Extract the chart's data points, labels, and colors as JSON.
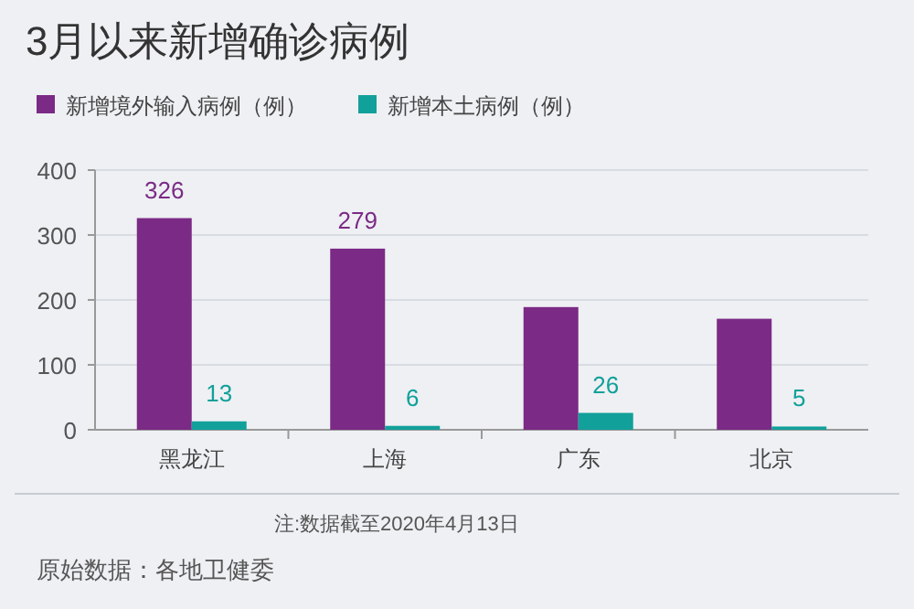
{
  "chart_data": {
    "type": "bar",
    "title": "3月以来新增确诊病例",
    "categories": [
      "黑龙江",
      "上海",
      "广东",
      "北京"
    ],
    "series": [
      {
        "name": "新增境外输入病例（例）",
        "color": "#7b2a85",
        "values": [
          326,
          279,
          189,
          171
        ],
        "value_labels": [
          "326",
          "279",
          null,
          null
        ]
      },
      {
        "name": "新增本土病例（例）",
        "color": "#12a09a",
        "values": [
          13,
          6,
          26,
          5
        ],
        "value_labels": [
          "13",
          "6",
          "26",
          "5"
        ]
      }
    ],
    "ylim": [
      0,
      400
    ],
    "yticks": [
      0,
      100,
      200,
      300,
      400
    ],
    "grid": "y",
    "legend": "top left",
    "annotations": [
      "注:数据截至2020年4月13日",
      "原始数据：各地卫健委"
    ]
  }
}
